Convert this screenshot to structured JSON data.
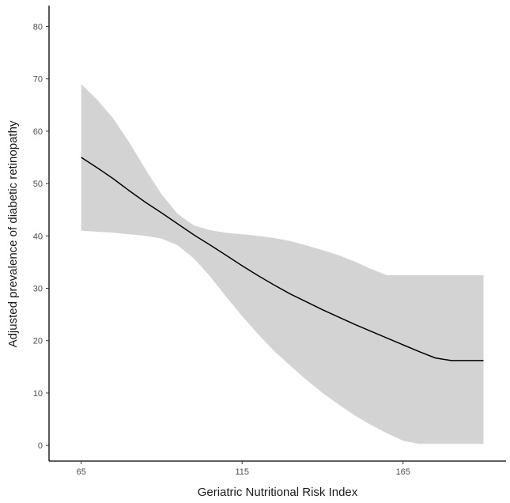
{
  "chart_data": {
    "type": "line",
    "xlabel": "Geriatric Nutritional Risk Index",
    "ylabel": "Adjusted prevalence of diabetic retinopathy",
    "xlim": [
      55,
      197
    ],
    "ylim": [
      -3,
      84
    ],
    "xticks": [
      65,
      115,
      165
    ],
    "yticks": [
      0,
      10,
      20,
      30,
      40,
      50,
      60,
      70,
      80
    ],
    "grid": false,
    "colors": {
      "line": "#000000",
      "band": "#d3d3d3"
    },
    "series": [
      {
        "x": [
          65,
          70,
          75,
          80,
          85,
          90,
          95,
          100,
          105,
          110,
          115,
          120,
          125,
          130,
          135,
          140,
          145,
          150,
          155,
          160,
          165,
          170,
          175,
          180,
          185,
          190
        ],
        "y": [
          55.0,
          53.0,
          50.9,
          48.6,
          46.4,
          44.4,
          42.3,
          40.2,
          38.3,
          36.3,
          34.3,
          32.4,
          30.6,
          28.9,
          27.4,
          25.9,
          24.5,
          23.1,
          21.8,
          20.5,
          19.2,
          17.9,
          16.7,
          16.2,
          16.2,
          16.2
        ],
        "lower": [
          41.0,
          40.8,
          40.6,
          40.3,
          40.0,
          39.5,
          38.2,
          35.7,
          32.3,
          28.4,
          24.7,
          21.2,
          18.0,
          15.2,
          12.5,
          10.0,
          7.8,
          5.7,
          3.9,
          2.3,
          0.9,
          0.3,
          0.3,
          0.3,
          0.3,
          0.3
        ],
        "upper": [
          69.0,
          66.0,
          62.4,
          57.8,
          52.7,
          47.9,
          44.2,
          42.0,
          41.1,
          40.6,
          40.3,
          40.0,
          39.6,
          39.0,
          38.2,
          37.3,
          36.3,
          35.1,
          33.7,
          32.5,
          32.5,
          32.5,
          32.5,
          32.5,
          32.5,
          32.5
        ]
      }
    ]
  }
}
